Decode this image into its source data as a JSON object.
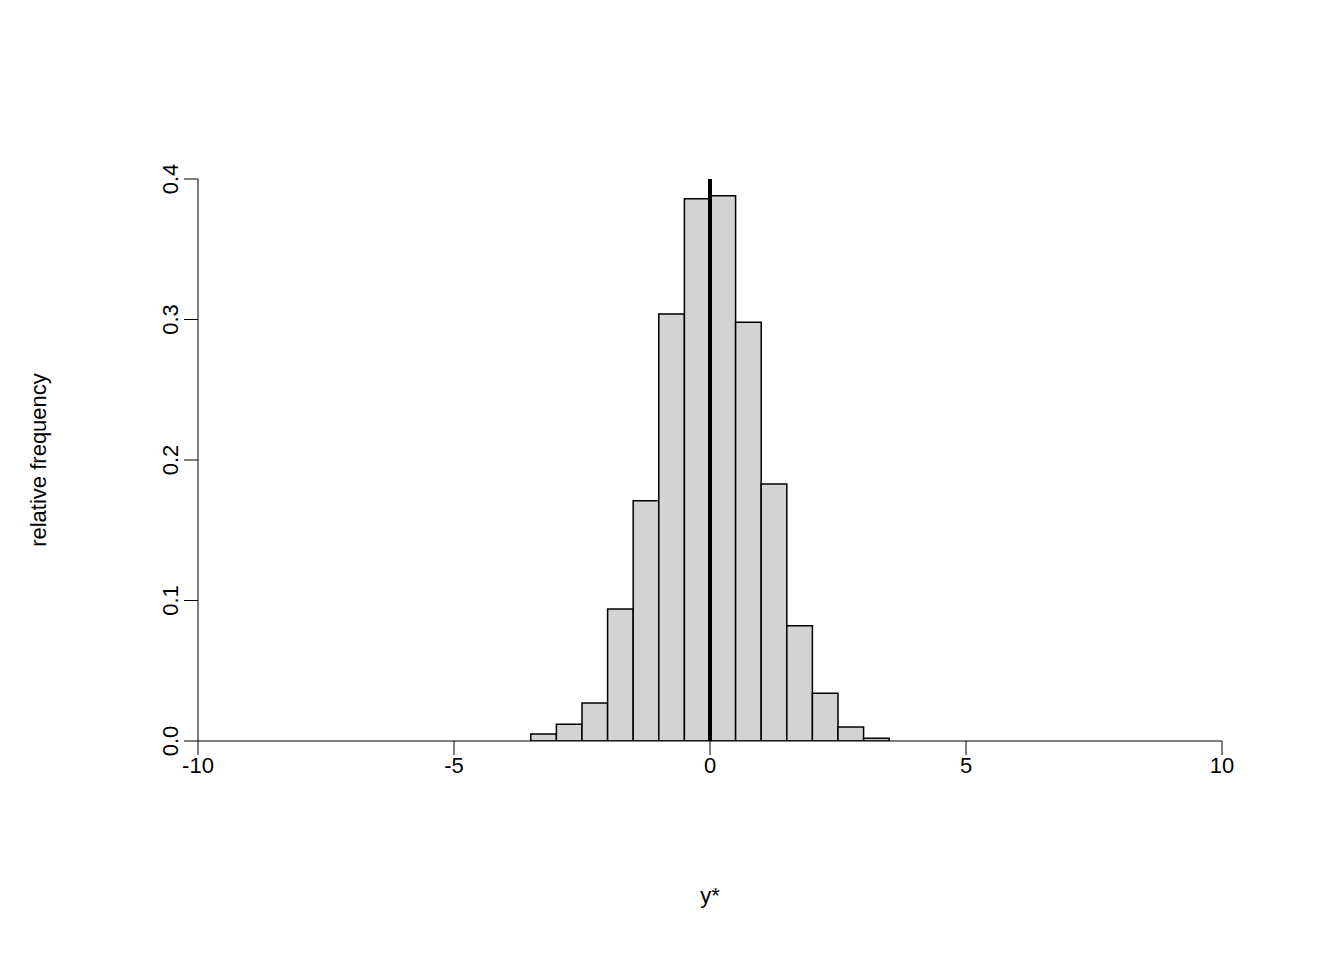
{
  "chart_data": {
    "type": "histogram",
    "x_label": "y*",
    "y_label": "relative frequency",
    "bins": [
      -3.5,
      -3,
      -2.5,
      -2,
      -1.5,
      -1,
      -0.5,
      0,
      0.5,
      1,
      1.5,
      2,
      2.5,
      3,
      3.5
    ],
    "values": [
      0.005,
      0.012,
      0.027,
      0.094,
      0.171,
      0.304,
      0.386,
      0.388,
      0.298,
      0.183,
      0.082,
      0.034,
      0.01,
      0.002
    ],
    "color": "#d3d3d3",
    "reference_line": 0,
    "xlim": [
      -10,
      10
    ],
    "ylim": [
      0,
      0.4
    ],
    "xticks": [
      -10,
      -5,
      0,
      5,
      10
    ],
    "yticks": [
      {
        "value": 0,
        "label": "0.0"
      },
      0.1,
      0.2,
      0.3,
      0.4
    ],
    "grid": false
  }
}
